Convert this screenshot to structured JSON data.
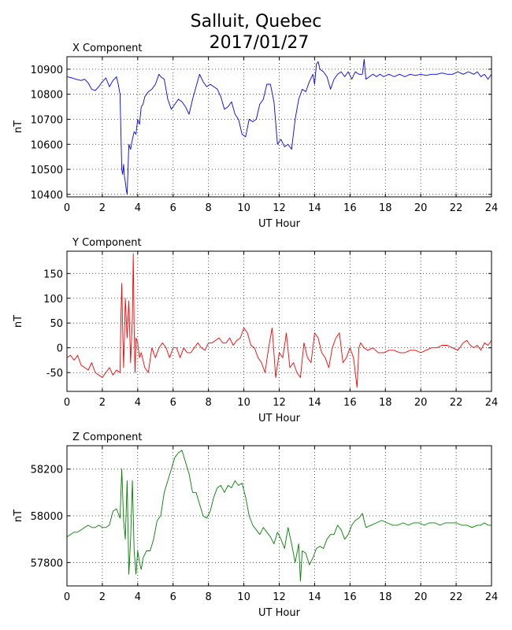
{
  "figure": {
    "title_line1": "Salluit, Quebec",
    "title_line2": "2017/01/27"
  },
  "chart_data": [
    {
      "type": "line",
      "title": "X Component",
      "xlabel": "UT Hour",
      "ylabel": "nT",
      "xlim": [
        0,
        24
      ],
      "ylim": [
        10390,
        10950
      ],
      "xticks": [
        0,
        2,
        4,
        6,
        8,
        10,
        12,
        14,
        16,
        18,
        20,
        22,
        24
      ],
      "yticks": [
        10400,
        10500,
        10600,
        10700,
        10800,
        10900
      ],
      "grid": true,
      "color": "#0000ff",
      "series": [
        {
          "x": [
            0,
            0.3,
            0.5,
            0.8,
            1.0,
            1.2,
            1.4,
            1.6,
            1.8,
            2.0,
            2.2,
            2.4,
            2.6,
            2.8,
            2.9,
            3.0,
            3.05,
            3.1,
            3.15,
            3.2,
            3.25,
            3.3,
            3.35,
            3.4,
            3.5,
            3.6,
            3.7,
            3.8,
            3.9,
            4.0,
            4.1,
            4.2,
            4.3,
            4.4,
            4.5,
            4.6,
            4.8,
            5.0,
            5.2,
            5.3,
            5.5,
            5.7,
            5.9,
            6.1,
            6.3,
            6.5,
            6.7,
            6.9,
            7.1,
            7.3,
            7.5,
            7.7,
            7.9,
            8.1,
            8.3,
            8.5,
            8.7,
            8.9,
            9.1,
            9.3,
            9.5,
            9.7,
            9.9,
            10.1,
            10.3,
            10.5,
            10.7,
            10.9,
            11.1,
            11.3,
            11.5,
            11.7,
            11.9,
            12.1,
            12.3,
            12.5,
            12.7,
            12.9,
            13.1,
            13.3,
            13.5,
            13.7,
            13.9,
            14.0,
            14.1,
            14.2,
            14.3,
            14.5,
            14.7,
            14.9,
            15.1,
            15.3,
            15.5,
            15.7,
            15.9,
            16.1,
            16.3,
            16.5,
            16.7,
            16.8,
            16.9,
            17.1,
            17.3,
            17.5,
            17.7,
            17.9,
            18.2,
            18.5,
            18.8,
            19.1,
            19.4,
            19.7,
            20.0,
            20.3,
            20.6,
            20.9,
            21.2,
            21.5,
            21.8,
            22.1,
            22.4,
            22.7,
            23.0,
            23.2,
            23.4,
            23.6,
            23.8,
            24.0
          ],
          "y": [
            10870,
            10865,
            10860,
            10855,
            10860,
            10845,
            10820,
            10815,
            10830,
            10850,
            10865,
            10830,
            10855,
            10870,
            10840,
            10800,
            10650,
            10500,
            10480,
            10520,
            10470,
            10450,
            10420,
            10400,
            10600,
            10580,
            10620,
            10650,
            10640,
            10700,
            10680,
            10750,
            10760,
            10790,
            10800,
            10810,
            10820,
            10840,
            10880,
            10870,
            10860,
            10780,
            10740,
            10760,
            10780,
            10770,
            10750,
            10720,
            10780,
            10830,
            10880,
            10850,
            10830,
            10840,
            10830,
            10820,
            10790,
            10740,
            10750,
            10770,
            10720,
            10700,
            10640,
            10630,
            10700,
            10690,
            10700,
            10760,
            10780,
            10840,
            10840,
            10770,
            10600,
            10620,
            10590,
            10600,
            10580,
            10700,
            10780,
            10820,
            10810,
            10850,
            10880,
            10840,
            10920,
            10930,
            10900,
            10890,
            10870,
            10820,
            10860,
            10880,
            10890,
            10870,
            10890,
            10860,
            10890,
            10880,
            10880,
            10940,
            10860,
            10870,
            10880,
            10870,
            10880,
            10870,
            10880,
            10870,
            10880,
            10870,
            10880,
            10875,
            10880,
            10875,
            10880,
            10880,
            10885,
            10880,
            10880,
            10890,
            10880,
            10890,
            10880,
            10890,
            10870,
            10880,
            10860,
            10880
          ]
        }
      ]
    },
    {
      "type": "line",
      "title": "Y Component",
      "xlabel": "UT Hour",
      "ylabel": "nT",
      "xlim": [
        0,
        24
      ],
      "ylim": [
        -88,
        195
      ],
      "xticks": [
        0,
        2,
        4,
        6,
        8,
        10,
        12,
        14,
        16,
        18,
        20,
        22,
        24
      ],
      "yticks": [
        -50,
        0,
        50,
        100,
        150
      ],
      "grid": true,
      "color": "#ff0000",
      "series": [
        {
          "x": [
            0,
            0.2,
            0.4,
            0.6,
            0.8,
            1.0,
            1.2,
            1.4,
            1.6,
            1.8,
            2.0,
            2.2,
            2.4,
            2.6,
            2.8,
            3.0,
            3.05,
            3.1,
            3.15,
            3.2,
            3.3,
            3.4,
            3.5,
            3.6,
            3.7,
            3.75,
            3.8,
            3.85,
            3.9,
            4.0,
            4.1,
            4.2,
            4.4,
            4.6,
            4.8,
            5.0,
            5.2,
            5.4,
            5.6,
            5.8,
            6.0,
            6.2,
            6.4,
            6.6,
            6.8,
            7.0,
            7.2,
            7.4,
            7.6,
            7.8,
            8.0,
            8.2,
            8.4,
            8.6,
            8.8,
            9.0,
            9.2,
            9.4,
            9.6,
            9.8,
            10.0,
            10.2,
            10.4,
            10.6,
            10.8,
            11.0,
            11.2,
            11.4,
            11.6,
            11.8,
            12.0,
            12.2,
            12.4,
            12.6,
            12.8,
            13.0,
            13.2,
            13.4,
            13.6,
            13.8,
            14.0,
            14.2,
            14.4,
            14.6,
            14.8,
            15.0,
            15.2,
            15.4,
            15.6,
            15.8,
            16.0,
            16.2,
            16.4,
            16.5,
            16.6,
            16.8,
            17.0,
            17.3,
            17.6,
            17.9,
            18.2,
            18.5,
            18.8,
            19.1,
            19.4,
            19.7,
            20.0,
            20.3,
            20.6,
            20.9,
            21.2,
            21.5,
            21.8,
            22.1,
            22.4,
            22.6,
            22.8,
            23.0,
            23.2,
            23.4,
            23.6,
            23.8,
            24.0
          ],
          "y": [
            -20,
            -15,
            -25,
            -15,
            -35,
            -40,
            -45,
            -30,
            -50,
            -55,
            -60,
            -50,
            -40,
            -55,
            -45,
            -50,
            60,
            130,
            40,
            -40,
            100,
            20,
            95,
            -30,
            60,
            190,
            40,
            -50,
            20,
            10,
            -20,
            -10,
            -40,
            -50,
            0,
            -20,
            0,
            10,
            0,
            -20,
            0,
            0,
            -20,
            0,
            -10,
            -10,
            0,
            10,
            0,
            -5,
            10,
            10,
            15,
            20,
            10,
            10,
            20,
            5,
            15,
            20,
            40,
            30,
            5,
            0,
            -20,
            -30,
            -50,
            0,
            40,
            -60,
            -10,
            -20,
            30,
            -40,
            -30,
            -50,
            -60,
            10,
            -20,
            -30,
            30,
            20,
            -10,
            -20,
            -40,
            0,
            20,
            30,
            -30,
            -20,
            0,
            -20,
            -80,
            0,
            10,
            0,
            -5,
            0,
            -10,
            -10,
            -5,
            -5,
            -10,
            -10,
            -5,
            -5,
            -10,
            -5,
            0,
            0,
            5,
            5,
            0,
            -5,
            10,
            15,
            5,
            0,
            5,
            -5,
            10,
            5,
            15
          ]
        }
      ]
    },
    {
      "type": "line",
      "title": "Z Component",
      "xlabel": "UT Hour",
      "ylabel": "nT",
      "xlim": [
        0,
        24
      ],
      "ylim": [
        57700,
        58300
      ],
      "xticks": [
        0,
        2,
        4,
        6,
        8,
        10,
        12,
        14,
        16,
        18,
        20,
        22,
        24
      ],
      "yticks": [
        57800,
        58000,
        58200
      ],
      "grid": true,
      "color": "#008000",
      "series": [
        {
          "x": [
            0,
            0.2,
            0.4,
            0.6,
            0.8,
            1.0,
            1.2,
            1.4,
            1.6,
            1.8,
            2.0,
            2.2,
            2.4,
            2.6,
            2.8,
            3.0,
            3.1,
            3.2,
            3.3,
            3.4,
            3.5,
            3.6,
            3.7,
            3.8,
            3.9,
            4.0,
            4.1,
            4.2,
            4.3,
            4.5,
            4.7,
            4.9,
            5.1,
            5.3,
            5.5,
            5.7,
            5.9,
            6.1,
            6.3,
            6.5,
            6.7,
            6.9,
            7.1,
            7.3,
            7.5,
            7.7,
            7.9,
            8.1,
            8.3,
            8.5,
            8.7,
            8.9,
            9.1,
            9.3,
            9.5,
            9.7,
            9.9,
            10.1,
            10.3,
            10.5,
            10.7,
            10.9,
            11.1,
            11.3,
            11.5,
            11.7,
            11.9,
            12.1,
            12.3,
            12.5,
            12.7,
            12.9,
            13.1,
            13.2,
            13.3,
            13.5,
            13.7,
            13.9,
            14.1,
            14.3,
            14.5,
            14.7,
            14.9,
            15.1,
            15.3,
            15.5,
            15.7,
            15.9,
            16.1,
            16.3,
            16.5,
            16.7,
            16.9,
            17.2,
            17.5,
            17.8,
            18.1,
            18.4,
            18.7,
            19.0,
            19.3,
            19.6,
            19.9,
            20.2,
            20.5,
            20.8,
            21.1,
            21.4,
            21.7,
            22.0,
            22.3,
            22.6,
            22.9,
            23.2,
            23.4,
            23.6,
            23.8,
            24.0
          ],
          "y": [
            57910,
            57920,
            57930,
            57930,
            57940,
            57950,
            57960,
            57950,
            57950,
            57960,
            57950,
            57950,
            57960,
            58020,
            58030,
            57990,
            58200,
            57980,
            57900,
            58150,
            57750,
            57900,
            58150,
            57850,
            57750,
            57850,
            57800,
            57770,
            57820,
            57850,
            57850,
            57900,
            57980,
            58000,
            58100,
            58150,
            58200,
            58250,
            58270,
            58280,
            58230,
            58180,
            58100,
            58100,
            58050,
            58000,
            57990,
            58020,
            58080,
            58120,
            58130,
            58100,
            58130,
            58120,
            58150,
            58130,
            58140,
            58080,
            58000,
            57960,
            57940,
            57920,
            57950,
            57930,
            57910,
            57880,
            57930,
            57900,
            57860,
            57950,
            57880,
            57800,
            57880,
            57720,
            57850,
            57840,
            57790,
            57820,
            57860,
            57870,
            57860,
            57900,
            57920,
            57920,
            57960,
            57940,
            57900,
            57920,
            57960,
            57980,
            57990,
            58010,
            57950,
            57960,
            57970,
            57980,
            57970,
            57960,
            57960,
            57970,
            57960,
            57970,
            57970,
            57960,
            57970,
            57970,
            57960,
            57970,
            57970,
            57970,
            57960,
            57960,
            57950,
            57960,
            57960,
            57970,
            57960,
            57960
          ]
        }
      ]
    }
  ]
}
